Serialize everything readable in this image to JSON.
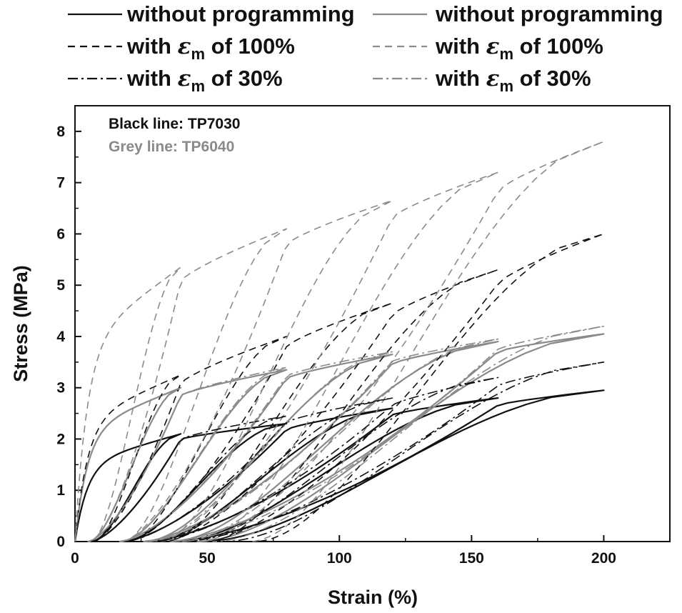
{
  "chart_data": {
    "type": "line",
    "xlabel": "Strain (%)",
    "ylabel": "Stress (MPa)",
    "xlim": [
      0,
      225
    ],
    "ylim": [
      0,
      8.5
    ],
    "xticks": [
      0,
      50,
      100,
      150,
      200
    ],
    "yticks": [
      0,
      1,
      2,
      3,
      4,
      5,
      6,
      7,
      8
    ],
    "legend_position": "top",
    "legend": [
      {
        "label": "without programming",
        "color": "#111111",
        "style": "solid"
      },
      {
        "label": "without programming",
        "color": "#8a8a8a",
        "style": "solid"
      },
      {
        "label_prefix": "with ",
        "label_symbol": "ε",
        "label_sub": "m",
        "label_suffix": " of 100%",
        "color": "#111111",
        "style": "dashed"
      },
      {
        "label_prefix": "with ",
        "label_symbol": "ε",
        "label_sub": "m",
        "label_suffix": " of 100%",
        "color": "#8a8a8a",
        "style": "dashed"
      },
      {
        "label_prefix": "with ",
        "label_symbol": "ε",
        "label_sub": "m",
        "label_suffix": " of 30%",
        "color": "#111111",
        "style": "dashdot"
      },
      {
        "label_prefix": "with ",
        "label_symbol": "ε",
        "label_sub": "m",
        "label_suffix": " of 30%",
        "color": "#8a8a8a",
        "style": "dashdot"
      }
    ],
    "annotations": [
      {
        "text": "Black line: TP7030",
        "color": "#111111"
      },
      {
        "text": "Grey line: TP6040",
        "color": "#8a8a8a"
      }
    ],
    "cycle_max_strain": [
      40,
      80,
      120,
      160,
      200
    ],
    "series": [
      {
        "name": "TP7030 without programming",
        "color": "#111111",
        "style": "solid",
        "peak_stress": [
          2.1,
          2.3,
          2.6,
          2.8,
          2.95
        ],
        "residual_strain": [
          6,
          18,
          28,
          38,
          48
        ]
      },
      {
        "name": "TP6040 without programming",
        "color": "#8a8a8a",
        "style": "solid",
        "peak_stress": [
          3.0,
          3.35,
          3.65,
          3.9,
          4.05
        ],
        "residual_strain": [
          5,
          17,
          26,
          36,
          46
        ]
      },
      {
        "name": "TP7030 with εm of 100%",
        "color": "#111111",
        "style": "dashed",
        "peak_stress": [
          3.25,
          4.0,
          4.65,
          5.3,
          6.0
        ],
        "residual_strain": [
          7,
          20,
          34,
          50,
          68
        ]
      },
      {
        "name": "TP6040 with εm of 100%",
        "color": "#8a8a8a",
        "style": "dashed",
        "peak_stress": [
          5.35,
          6.1,
          6.65,
          7.2,
          7.8
        ],
        "residual_strain": [
          6,
          18,
          32,
          48,
          66
        ]
      },
      {
        "name": "TP7030 with εm of 30%",
        "color": "#111111",
        "style": "dashdot",
        "peak_stress": [
          2.1,
          2.45,
          2.8,
          3.2,
          3.5
        ],
        "residual_strain": [
          6,
          19,
          30,
          42,
          56
        ]
      },
      {
        "name": "TP6040 with εm of 30%",
        "color": "#8a8a8a",
        "style": "dashdot",
        "peak_stress": [
          3.0,
          3.4,
          3.7,
          3.95,
          4.2
        ],
        "residual_strain": [
          5,
          17,
          28,
          40,
          52
        ]
      }
    ]
  }
}
